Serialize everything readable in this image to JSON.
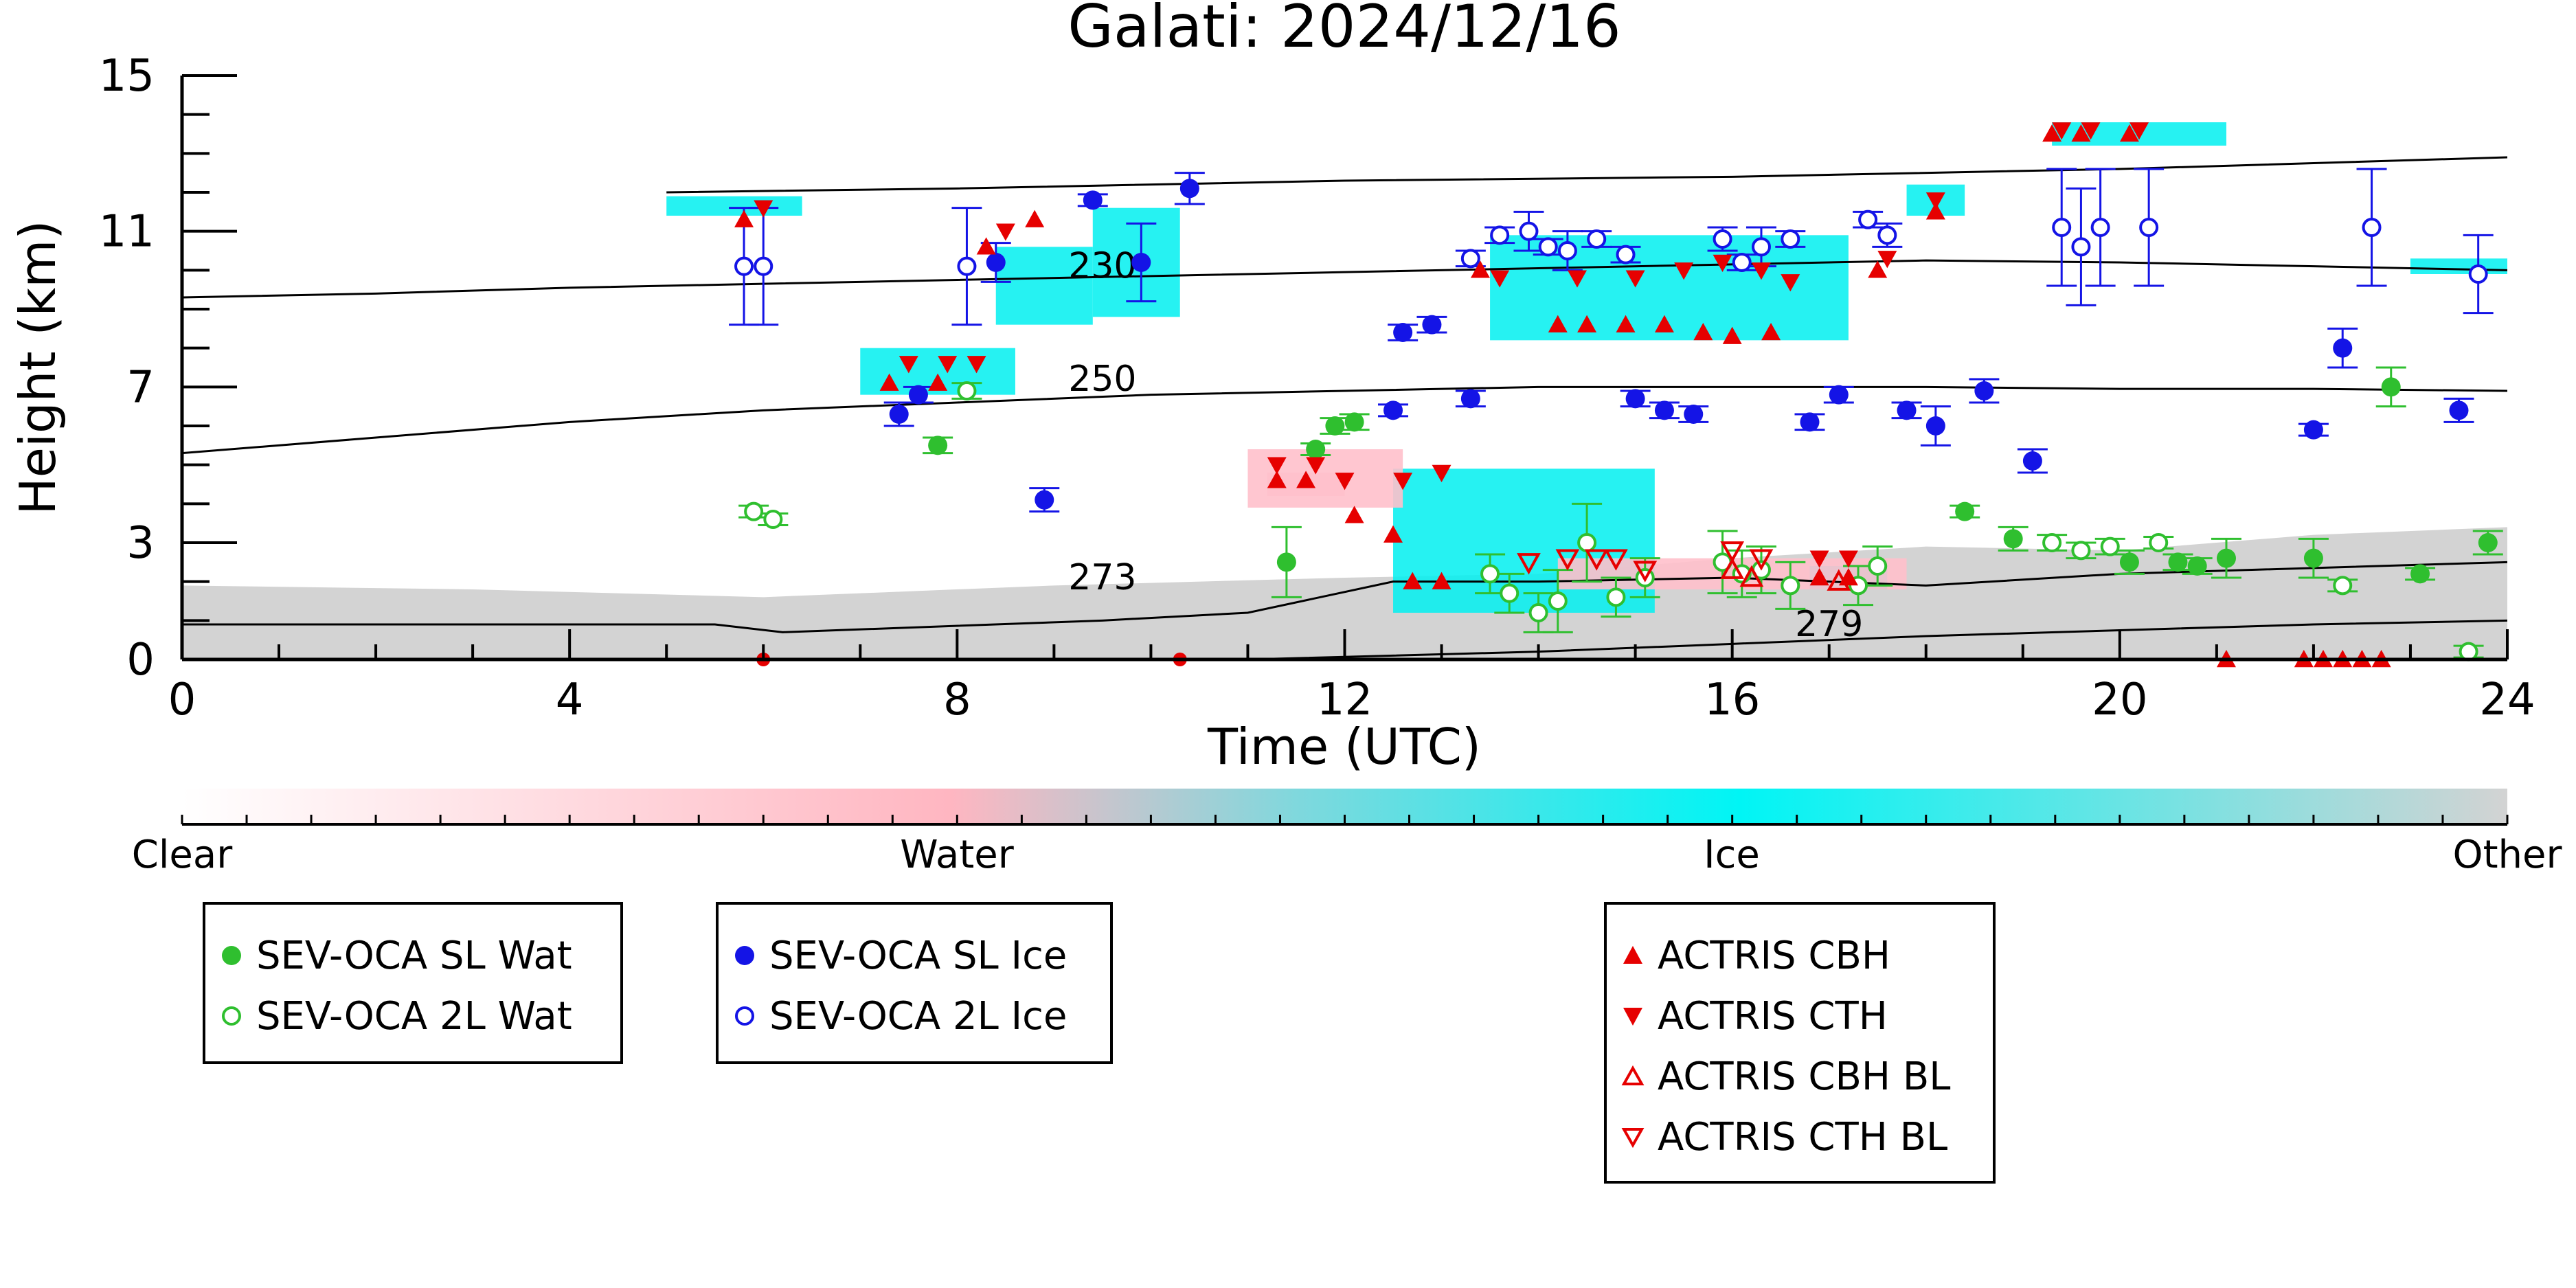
{
  "chart_data": {
    "type": "scatter",
    "title": "Galati: 2024/12/16",
    "xlabel": "Time (UTC)",
    "ylabel": "Height (km)",
    "xlim": [
      0,
      24
    ],
    "ylim": [
      0,
      15
    ],
    "x_ticks": [
      {
        "value": 0,
        "label": "0"
      },
      {
        "value": 4,
        "label": "4"
      },
      {
        "value": 8,
        "label": "8"
      },
      {
        "value": 12,
        "label": "12"
      },
      {
        "value": 16,
        "label": "16"
      },
      {
        "value": 20,
        "label": "20"
      },
      {
        "value": 24,
        "label": "24"
      }
    ],
    "y_ticks": [
      {
        "value": 0,
        "label": "0"
      },
      {
        "value": 3,
        "label": "3"
      },
      {
        "value": 7,
        "label": "7"
      },
      {
        "value": 11,
        "label": "11"
      },
      {
        "value": 15,
        "label": "15"
      }
    ],
    "colorbar": {
      "labels": [
        "Clear",
        "Water",
        "Ice",
        "Other"
      ],
      "colors": [
        "#ffffff",
        "#ffb6c1",
        "#00f5f5",
        "#d3d3d3"
      ]
    },
    "contours": [
      {
        "label": "230",
        "label_at": [
          9.5,
          9.8
        ],
        "points": [
          [
            0,
            9.3
          ],
          [
            2,
            9.4
          ],
          [
            4,
            9.55
          ],
          [
            6,
            9.65
          ],
          [
            8,
            9.75
          ],
          [
            10,
            9.85
          ],
          [
            12,
            9.95
          ],
          [
            14,
            10.05
          ],
          [
            16,
            10.15
          ],
          [
            18,
            10.25
          ],
          [
            20,
            10.2
          ],
          [
            22,
            10.1
          ],
          [
            24,
            10.0
          ]
        ]
      },
      {
        "label": "250",
        "label_at": [
          9.5,
          6.9
        ],
        "points": [
          [
            0,
            5.3
          ],
          [
            2,
            5.7
          ],
          [
            4,
            6.1
          ],
          [
            6,
            6.4
          ],
          [
            8,
            6.6
          ],
          [
            10,
            6.8
          ],
          [
            12,
            6.9
          ],
          [
            14,
            7.0
          ],
          [
            16,
            7.0
          ],
          [
            18,
            7.0
          ],
          [
            20,
            6.95
          ],
          [
            22,
            6.95
          ],
          [
            24,
            6.9
          ]
        ]
      },
      {
        "label": "273",
        "label_at": [
          9.5,
          1.8
        ],
        "points": [
          [
            0,
            0.9
          ],
          [
            3,
            0.9
          ],
          [
            5.5,
            0.9
          ],
          [
            6.2,
            0.7
          ],
          [
            9.5,
            1.0
          ],
          [
            11,
            1.2
          ],
          [
            12.5,
            2.0
          ],
          [
            14,
            2.0
          ],
          [
            16,
            2.1
          ],
          [
            18,
            1.9
          ],
          [
            20,
            2.2
          ],
          [
            24,
            2.5
          ]
        ]
      },
      {
        "label": "279",
        "label_at": [
          17,
          0.6
        ],
        "points": [
          [
            11,
            0
          ],
          [
            14,
            0.2
          ],
          [
            16,
            0.4
          ],
          [
            18,
            0.6
          ],
          [
            20,
            0.75
          ],
          [
            22,
            0.9
          ],
          [
            24,
            1.0
          ]
        ]
      }
    ],
    "upper_contour": {
      "points": [
        [
          5,
          12.0
        ],
        [
          8,
          12.1
        ],
        [
          12,
          12.3
        ],
        [
          16,
          12.4
        ],
        [
          20,
          12.6
        ],
        [
          24,
          12.9
        ]
      ]
    },
    "series": [
      {
        "name": "SEV-OCA SL Wat",
        "marker": "filled-circle",
        "color": "#2fbf2f",
        "points": [
          [
            7.8,
            5.5,
            0.2
          ],
          [
            11.4,
            2.5,
            0.9
          ],
          [
            11.7,
            5.4,
            0.15
          ],
          [
            11.9,
            6.0,
            0.2
          ],
          [
            12.1,
            6.1,
            0.2
          ],
          [
            18.4,
            3.8,
            0.15
          ],
          [
            18.9,
            3.1,
            0.3
          ],
          [
            20.1,
            2.5,
            0.3
          ],
          [
            20.6,
            2.5,
            0.2
          ],
          [
            20.8,
            2.4,
            0.2
          ],
          [
            21.1,
            2.6,
            0.5
          ],
          [
            22.0,
            2.6,
            0.5
          ],
          [
            22.8,
            7.0,
            0.5
          ],
          [
            23.1,
            2.2,
            0.15
          ],
          [
            23.8,
            3.0,
            0.3
          ]
        ]
      },
      {
        "name": "SEV-OCA 2L Wat",
        "marker": "open-circle",
        "color": "#2fbf2f",
        "points": [
          [
            5.9,
            3.8,
            0.15
          ],
          [
            6.1,
            3.6,
            0.15
          ],
          [
            8.1,
            6.9,
            0.2
          ],
          [
            13.5,
            2.2,
            0.5
          ],
          [
            13.7,
            1.7,
            0.5
          ],
          [
            14.0,
            1.2,
            0.5
          ],
          [
            14.2,
            1.5,
            0.8
          ],
          [
            14.5,
            3.0,
            1.0
          ],
          [
            14.8,
            1.6,
            0.5
          ],
          [
            15.1,
            2.1,
            0.5
          ],
          [
            15.9,
            2.5,
            0.8
          ],
          [
            16.1,
            2.2,
            0.6
          ],
          [
            16.3,
            2.3,
            0.6
          ],
          [
            16.6,
            1.9,
            0.6
          ],
          [
            17.3,
            1.9,
            0.5
          ],
          [
            17.5,
            2.4,
            0.5
          ],
          [
            19.3,
            3.0,
            0.2
          ],
          [
            19.6,
            2.8,
            0.2
          ],
          [
            19.9,
            2.9,
            0.2
          ],
          [
            20.4,
            3.0,
            0.15
          ],
          [
            22.3,
            1.9,
            0.15
          ],
          [
            23.6,
            0.2,
            0.15
          ]
        ]
      },
      {
        "name": "SEV-OCA SL Ice",
        "marker": "filled-circle",
        "color": "#1414e6",
        "points": [
          [
            7.4,
            6.3,
            0.3
          ],
          [
            7.6,
            6.8,
            0.2
          ],
          [
            8.4,
            10.2,
            0.5
          ],
          [
            8.9,
            4.1,
            0.3
          ],
          [
            9.4,
            11.8,
            0.15
          ],
          [
            9.9,
            10.2,
            1.0
          ],
          [
            10.4,
            12.1,
            0.4
          ],
          [
            12.5,
            6.4,
            0.15
          ],
          [
            12.6,
            8.4,
            0.2
          ],
          [
            12.9,
            8.6,
            0.2
          ],
          [
            13.3,
            6.7,
            0.2
          ],
          [
            15.0,
            6.7,
            0.2
          ],
          [
            15.3,
            6.4,
            0.2
          ],
          [
            15.6,
            6.3,
            0.2
          ],
          [
            16.8,
            6.1,
            0.2
          ],
          [
            17.1,
            6.8,
            0.2
          ],
          [
            17.8,
            6.4,
            0.2
          ],
          [
            18.1,
            6.0,
            0.5
          ],
          [
            18.6,
            6.9,
            0.3
          ],
          [
            19.1,
            5.1,
            0.3
          ],
          [
            22.0,
            5.9,
            0.15
          ],
          [
            22.3,
            8.0,
            0.5
          ],
          [
            23.5,
            6.4,
            0.3
          ]
        ]
      },
      {
        "name": "SEV-OCA 2L Ice",
        "marker": "open-circle",
        "color": "#1414e6",
        "points": [
          [
            5.8,
            10.1,
            1.5
          ],
          [
            6.0,
            10.1,
            1.5
          ],
          [
            8.1,
            10.1,
            1.5
          ],
          [
            13.3,
            10.3,
            0.2
          ],
          [
            13.6,
            10.9,
            0.2
          ],
          [
            13.9,
            11.0,
            0.5
          ],
          [
            14.1,
            10.6,
            0.2
          ],
          [
            14.3,
            10.5,
            0.5
          ],
          [
            14.6,
            10.8,
            0.2
          ],
          [
            14.9,
            10.4,
            0.2
          ],
          [
            15.9,
            10.8,
            0.3
          ],
          [
            16.1,
            10.2,
            0.2
          ],
          [
            16.3,
            10.6,
            0.5
          ],
          [
            16.6,
            10.8,
            0.2
          ],
          [
            17.4,
            11.3,
            0.2
          ],
          [
            17.6,
            10.9,
            0.3
          ],
          [
            19.4,
            11.1,
            1.5
          ],
          [
            19.6,
            10.6,
            1.5
          ],
          [
            19.8,
            11.1,
            1.5
          ],
          [
            20.3,
            11.1,
            1.5
          ],
          [
            22.6,
            11.1,
            1.5
          ],
          [
            23.7,
            9.9,
            1.0
          ]
        ]
      },
      {
        "name": "ACTRIS CBH",
        "marker": "triangle-up-filled",
        "color": "#e60000",
        "points": [
          [
            5.8,
            11.3
          ],
          [
            7.3,
            7.1
          ],
          [
            7.8,
            7.1
          ],
          [
            8.3,
            10.6
          ],
          [
            8.8,
            11.3
          ],
          [
            11.3,
            4.6
          ],
          [
            11.6,
            4.6
          ],
          [
            12.1,
            3.7
          ],
          [
            12.5,
            3.2
          ],
          [
            12.7,
            2.0
          ],
          [
            13.0,
            2.0
          ],
          [
            13.4,
            10.0
          ],
          [
            14.2,
            8.6
          ],
          [
            14.5,
            8.6
          ],
          [
            14.9,
            8.6
          ],
          [
            15.3,
            8.6
          ],
          [
            15.7,
            8.4
          ],
          [
            16.0,
            8.3
          ],
          [
            16.4,
            8.4
          ],
          [
            16.9,
            2.1
          ],
          [
            17.2,
            2.1
          ],
          [
            17.5,
            10.0
          ],
          [
            18.1,
            11.5
          ],
          [
            19.3,
            13.5
          ],
          [
            19.6,
            13.5
          ],
          [
            20.1,
            13.5
          ],
          [
            21.1,
            0.0
          ],
          [
            21.9,
            0.0
          ],
          [
            22.1,
            0.0
          ],
          [
            22.3,
            0.0
          ],
          [
            22.5,
            0.0
          ],
          [
            22.7,
            0.0
          ]
        ]
      },
      {
        "name": "ACTRIS CTH",
        "marker": "triangle-down-filled",
        "color": "#e60000",
        "points": [
          [
            6.0,
            11.6
          ],
          [
            7.5,
            7.6
          ],
          [
            7.9,
            7.6
          ],
          [
            8.2,
            7.6
          ],
          [
            8.5,
            11.0
          ],
          [
            11.3,
            5.0
          ],
          [
            11.7,
            5.0
          ],
          [
            12.0,
            4.6
          ],
          [
            12.6,
            4.6
          ],
          [
            13.0,
            4.8
          ],
          [
            13.6,
            9.8
          ],
          [
            14.4,
            9.8
          ],
          [
            15.0,
            9.8
          ],
          [
            15.5,
            10.0
          ],
          [
            15.9,
            10.2
          ],
          [
            16.3,
            10.0
          ],
          [
            16.6,
            9.7
          ],
          [
            16.9,
            2.6
          ],
          [
            17.2,
            2.6
          ],
          [
            17.6,
            10.3
          ],
          [
            18.1,
            11.8
          ],
          [
            19.4,
            13.6
          ],
          [
            19.7,
            13.6
          ],
          [
            20.2,
            13.6
          ]
        ]
      },
      {
        "name": "ACTRIS CBH BL",
        "marker": "triangle-up-open",
        "color": "#e60000",
        "points": [
          [
            16.0,
            2.3
          ],
          [
            16.2,
            2.1
          ],
          [
            17.1,
            2.0
          ]
        ]
      },
      {
        "name": "ACTRIS CTH BL",
        "marker": "triangle-down-open",
        "color": "#e60000",
        "points": [
          [
            13.9,
            2.5
          ],
          [
            14.3,
            2.6
          ],
          [
            14.6,
            2.6
          ],
          [
            14.8,
            2.6
          ],
          [
            15.1,
            2.3
          ],
          [
            16.0,
            2.8
          ],
          [
            16.3,
            2.6
          ]
        ]
      }
    ],
    "stray_marks": [
      [
        6.0,
        0.0
      ],
      [
        10.3,
        0.0
      ]
    ],
    "legend_placement": "below plot, three boxes",
    "grid": false
  },
  "legend_groups": [
    {
      "items": [
        {
          "label": "SEV-OCA SL Wat",
          "marker": "filled-circle",
          "color": "#2fbf2f"
        },
        {
          "label": "SEV-OCA 2L Wat",
          "marker": "open-circle",
          "color": "#2fbf2f"
        }
      ]
    },
    {
      "items": [
        {
          "label": "SEV-OCA SL Ice",
          "marker": "filled-circle",
          "color": "#1414e6"
        },
        {
          "label": "SEV-OCA 2L Ice",
          "marker": "open-circle",
          "color": "#1414e6"
        }
      ]
    },
    {
      "items": [
        {
          "label": "ACTRIS CBH",
          "marker": "triangle-up-filled",
          "color": "#e60000"
        },
        {
          "label": "ACTRIS CTH",
          "marker": "triangle-down-filled",
          "color": "#e60000"
        },
        {
          "label": "ACTRIS CBH BL",
          "marker": "triangle-up-open",
          "color": "#e60000"
        },
        {
          "label": "ACTRIS CTH BL",
          "marker": "triangle-down-open",
          "color": "#e60000"
        }
      ]
    }
  ]
}
